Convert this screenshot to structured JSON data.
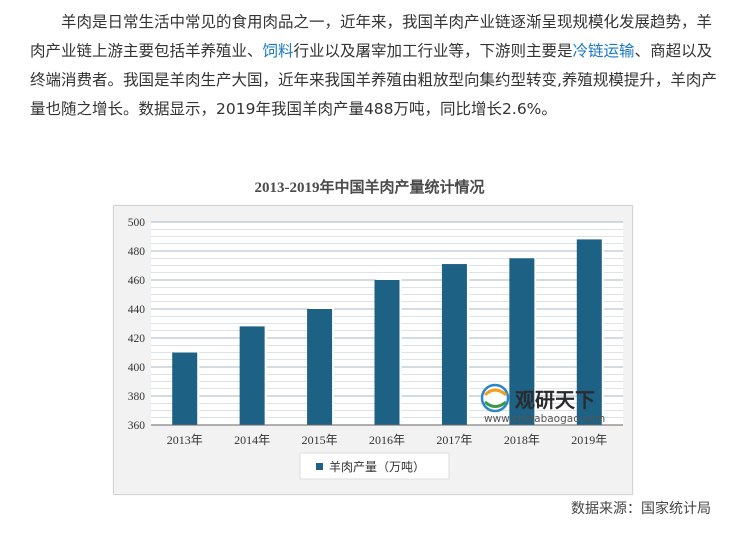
{
  "article": {
    "p1": "羊肉是日常生活中常见的食用肉品之一，近年来，我国羊肉产业链逐渐呈现规模化发展趋势，羊肉产业链上游主要包括羊养殖业、",
    "link1": "饲料",
    "p2": "行业以及屠宰加工行业等，下游则主要是",
    "link2": "冷链运输",
    "p3": "、商超以及终端消费者。我国是羊肉生产大国，近年来我国羊养殖由粗放型向集约型转变,养殖规模提升，羊肉产量也随之增长。数据显示，2019年我国羊肉产量488万吨，同比增长2.6%。"
  },
  "watermark": {
    "brand": "观研天下",
    "url": "www.chinabaogao.com"
  },
  "source": "数据来源：国家统计局",
  "colors": {
    "bar": "#1d6185",
    "link": "#1a79c9"
  },
  "chart_data": {
    "type": "bar",
    "title": "2013-2019年中国羊肉产量统计情况",
    "categories": [
      "2013年",
      "2014年",
      "2015年",
      "2016年",
      "2017年",
      "2018年",
      "2019年"
    ],
    "series": [
      {
        "name": "羊肉产量（万吨）",
        "values": [
          410,
          428,
          440,
          460,
          471,
          475,
          488
        ]
      }
    ],
    "ylim": [
      360,
      500
    ],
    "yticks": [
      360,
      380,
      400,
      420,
      440,
      460,
      480,
      500
    ],
    "grid": true,
    "legend": "bottom"
  }
}
